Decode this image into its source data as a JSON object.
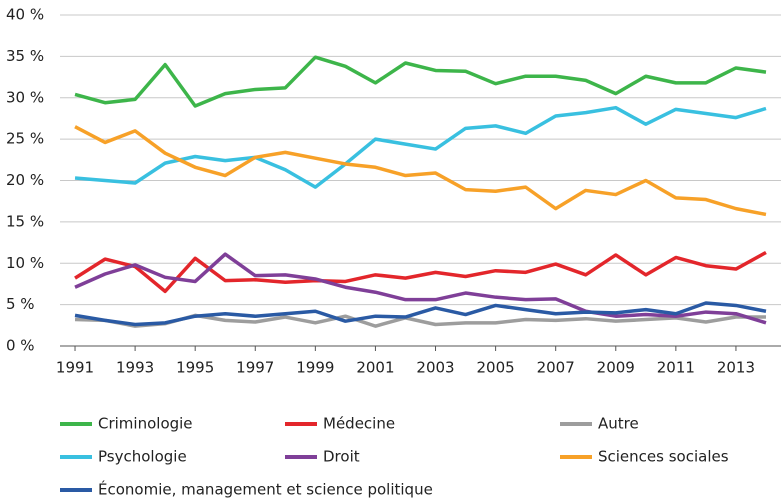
{
  "chart_data": {
    "type": "line",
    "x": [
      1991,
      1992,
      1993,
      1994,
      1995,
      1996,
      1997,
      1998,
      1999,
      2000,
      2001,
      2002,
      2003,
      2004,
      2005,
      2006,
      2007,
      2008,
      2009,
      2010,
      2011,
      2012,
      2013,
      2014
    ],
    "xlim": [
      1990.5,
      2014.5
    ],
    "xticks": [
      1991,
      1993,
      1995,
      1997,
      1999,
      2001,
      2003,
      2005,
      2007,
      2009,
      2011,
      2013
    ],
    "ylim": [
      0,
      40
    ],
    "yticks": [
      {
        "value": 0,
        "label": "0 %"
      },
      {
        "value": 5,
        "label": "5 %"
      },
      {
        "value": 10,
        "label": "10 %"
      },
      {
        "value": 15,
        "label": "15 %"
      },
      {
        "value": 20,
        "label": "20 %"
      },
      {
        "value": 25,
        "label": "25 %"
      },
      {
        "value": 30,
        "label": "30 %"
      },
      {
        "value": 35,
        "label": "35 %"
      },
      {
        "value": 40,
        "label": "40 %"
      }
    ],
    "grid": true,
    "series": [
      {
        "name": "Criminologie",
        "color": "#3db54a",
        "values": [
          30.4,
          29.4,
          29.8,
          34.0,
          29.0,
          30.5,
          31.0,
          31.2,
          34.9,
          33.8,
          31.8,
          34.2,
          33.3,
          33.2,
          31.7,
          32.6,
          32.6,
          32.1,
          30.5,
          32.6,
          31.8,
          31.8,
          33.6,
          33.1
        ]
      },
      {
        "name": "Médecine",
        "color": "#e3262b",
        "values": [
          8.2,
          10.5,
          9.6,
          6.6,
          10.6,
          7.9,
          8.0,
          7.7,
          7.9,
          7.8,
          8.6,
          8.2,
          8.9,
          8.4,
          9.1,
          8.9,
          9.9,
          8.6,
          11.0,
          8.6,
          10.7,
          9.7,
          9.3,
          11.3
        ]
      },
      {
        "name": "Autre",
        "color": "#9d9d9d",
        "values": [
          3.2,
          3.1,
          2.4,
          2.7,
          3.7,
          3.1,
          2.9,
          3.5,
          2.8,
          3.6,
          2.4,
          3.4,
          2.6,
          2.8,
          2.8,
          3.2,
          3.1,
          3.3,
          3.0,
          3.2,
          3.4,
          2.9,
          3.5,
          3.5
        ]
      },
      {
        "name": "Psychologie",
        "color": "#39c0e0",
        "values": [
          20.3,
          20.0,
          19.7,
          22.1,
          22.9,
          22.4,
          22.8,
          21.3,
          19.2,
          22.0,
          25.0,
          24.4,
          23.8,
          26.3,
          26.6,
          25.7,
          27.8,
          28.2,
          28.8,
          26.8,
          28.6,
          28.1,
          27.6,
          28.7
        ]
      },
      {
        "name": "Droit",
        "color": "#7f3f98",
        "values": [
          7.1,
          8.7,
          9.8,
          8.3,
          7.8,
          11.1,
          8.5,
          8.6,
          8.1,
          7.1,
          6.5,
          5.6,
          5.6,
          6.4,
          5.9,
          5.6,
          5.7,
          4.2,
          3.6,
          3.8,
          3.6,
          4.1,
          3.9,
          2.8
        ]
      },
      {
        "name": "Sciences sociales",
        "color": "#f7a128",
        "values": [
          26.5,
          24.6,
          26.0,
          23.3,
          21.6,
          20.6,
          22.8,
          23.4,
          22.7,
          22.0,
          21.6,
          20.6,
          20.9,
          18.9,
          18.7,
          19.2,
          16.6,
          18.8,
          18.3,
          20.0,
          17.9,
          17.7,
          16.6,
          15.9
        ]
      },
      {
        "name": "Économie, management et science politique",
        "color": "#2a5aa4",
        "values": [
          3.7,
          3.1,
          2.6,
          2.8,
          3.6,
          3.9,
          3.6,
          3.9,
          4.2,
          3.0,
          3.6,
          3.5,
          4.6,
          3.8,
          4.9,
          4.4,
          3.9,
          4.1,
          4.0,
          4.4,
          3.9,
          5.2,
          4.9,
          4.2
        ]
      }
    ]
  }
}
